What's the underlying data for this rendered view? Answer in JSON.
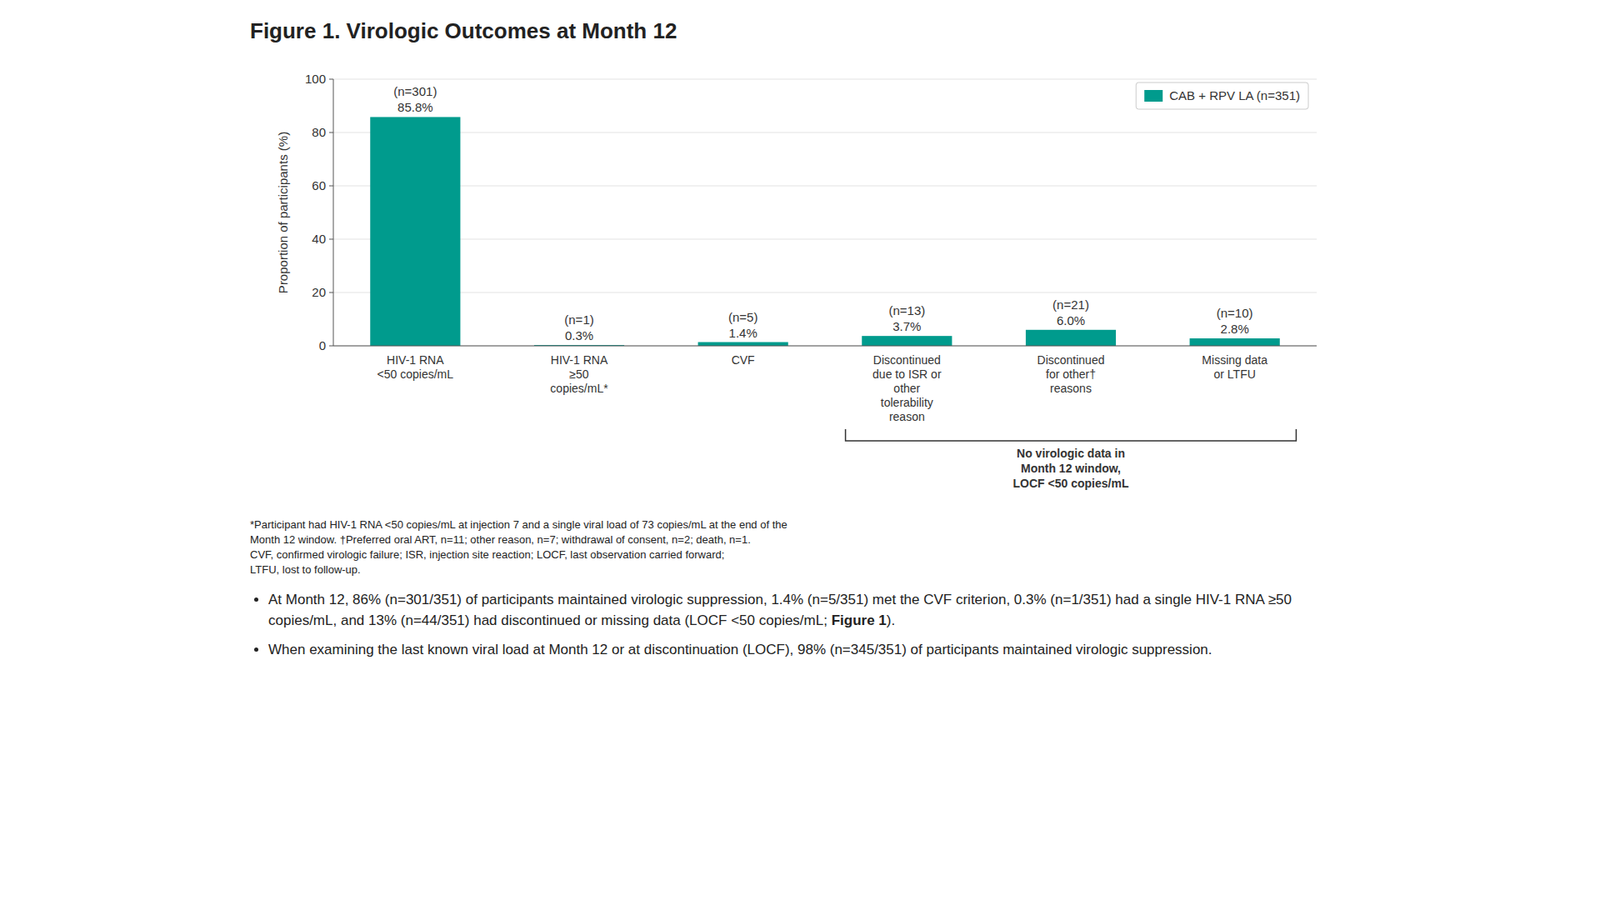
{
  "chart_data": {
    "type": "bar",
    "title": "Figure 1. Virologic Outcomes at Month 12",
    "categories": [
      "HIV-1 RNA\n<50 copies/mL",
      "HIV-1 RNA\n≥50\ncopies/mL*",
      "CVF",
      "Discontinued\ndue to ISR or\nother\ntolerability\nreason",
      "Discontinued\nfor other†\nreasons",
      "Missing data\nor LTFU"
    ],
    "series": [
      {
        "name": "CAB + RPV LA (n=351)",
        "color": "#009B8D",
        "values": [
          85.8,
          0.3,
          1.4,
          3.7,
          6.0,
          2.8
        ],
        "value_labels": [
          "85.8%",
          "0.3%",
          "1.4%",
          "3.7%",
          "6.0%",
          "2.8%"
        ],
        "n_labels": [
          "(n=301)",
          "(n=1)",
          "(n=5)",
          "(n=13)",
          "(n=21)",
          "(n=10)"
        ]
      }
    ],
    "ylabel": "Proportion of participants (%)",
    "ylim": [
      0,
      100
    ],
    "yticks": [
      0,
      20,
      40,
      60,
      80,
      100
    ],
    "grid": true,
    "legend": "upper right",
    "data_labels": true,
    "annotations": [
      {
        "text": "No virologic data in\nMonth 12 window,\nLOCF <50 copies/mL",
        "span": [
          3,
          5
        ]
      }
    ],
    "footnotes": [
      "*Participant had HIV-1 RNA <50 copies/mL at injection 7 and a single viral load of 73 copies/mL at the end of the",
      "Month 12 window. †Preferred oral ART, n=11; other reason, n=7; withdrawal of consent, n=2; death, n=1.",
      "CVF, confirmed virologic failure; ISR, injection site reaction; LOCF, last observation carried forward;",
      "LTFU, lost to follow-up."
    ],
    "bullets": [
      {
        "text": "At Month 12, 86% (n=301/351) of participants maintained virologic suppression, 1.4% (n=5/351) met the CVF criterion, 0.3% (n=1/351) had a single HIV-1 RNA ≥50 copies/mL, and 13% (n=44/351) had discontinued or missing data (LOCF <50 copies/mL; ",
        "bold": "Figure 1",
        "end": ")."
      },
      {
        "text": "When examining the last known viral load at Month 12 or at discontinuation (LOCF), 98% (n=345/351) of participants maintained virologic suppression."
      }
    ]
  }
}
